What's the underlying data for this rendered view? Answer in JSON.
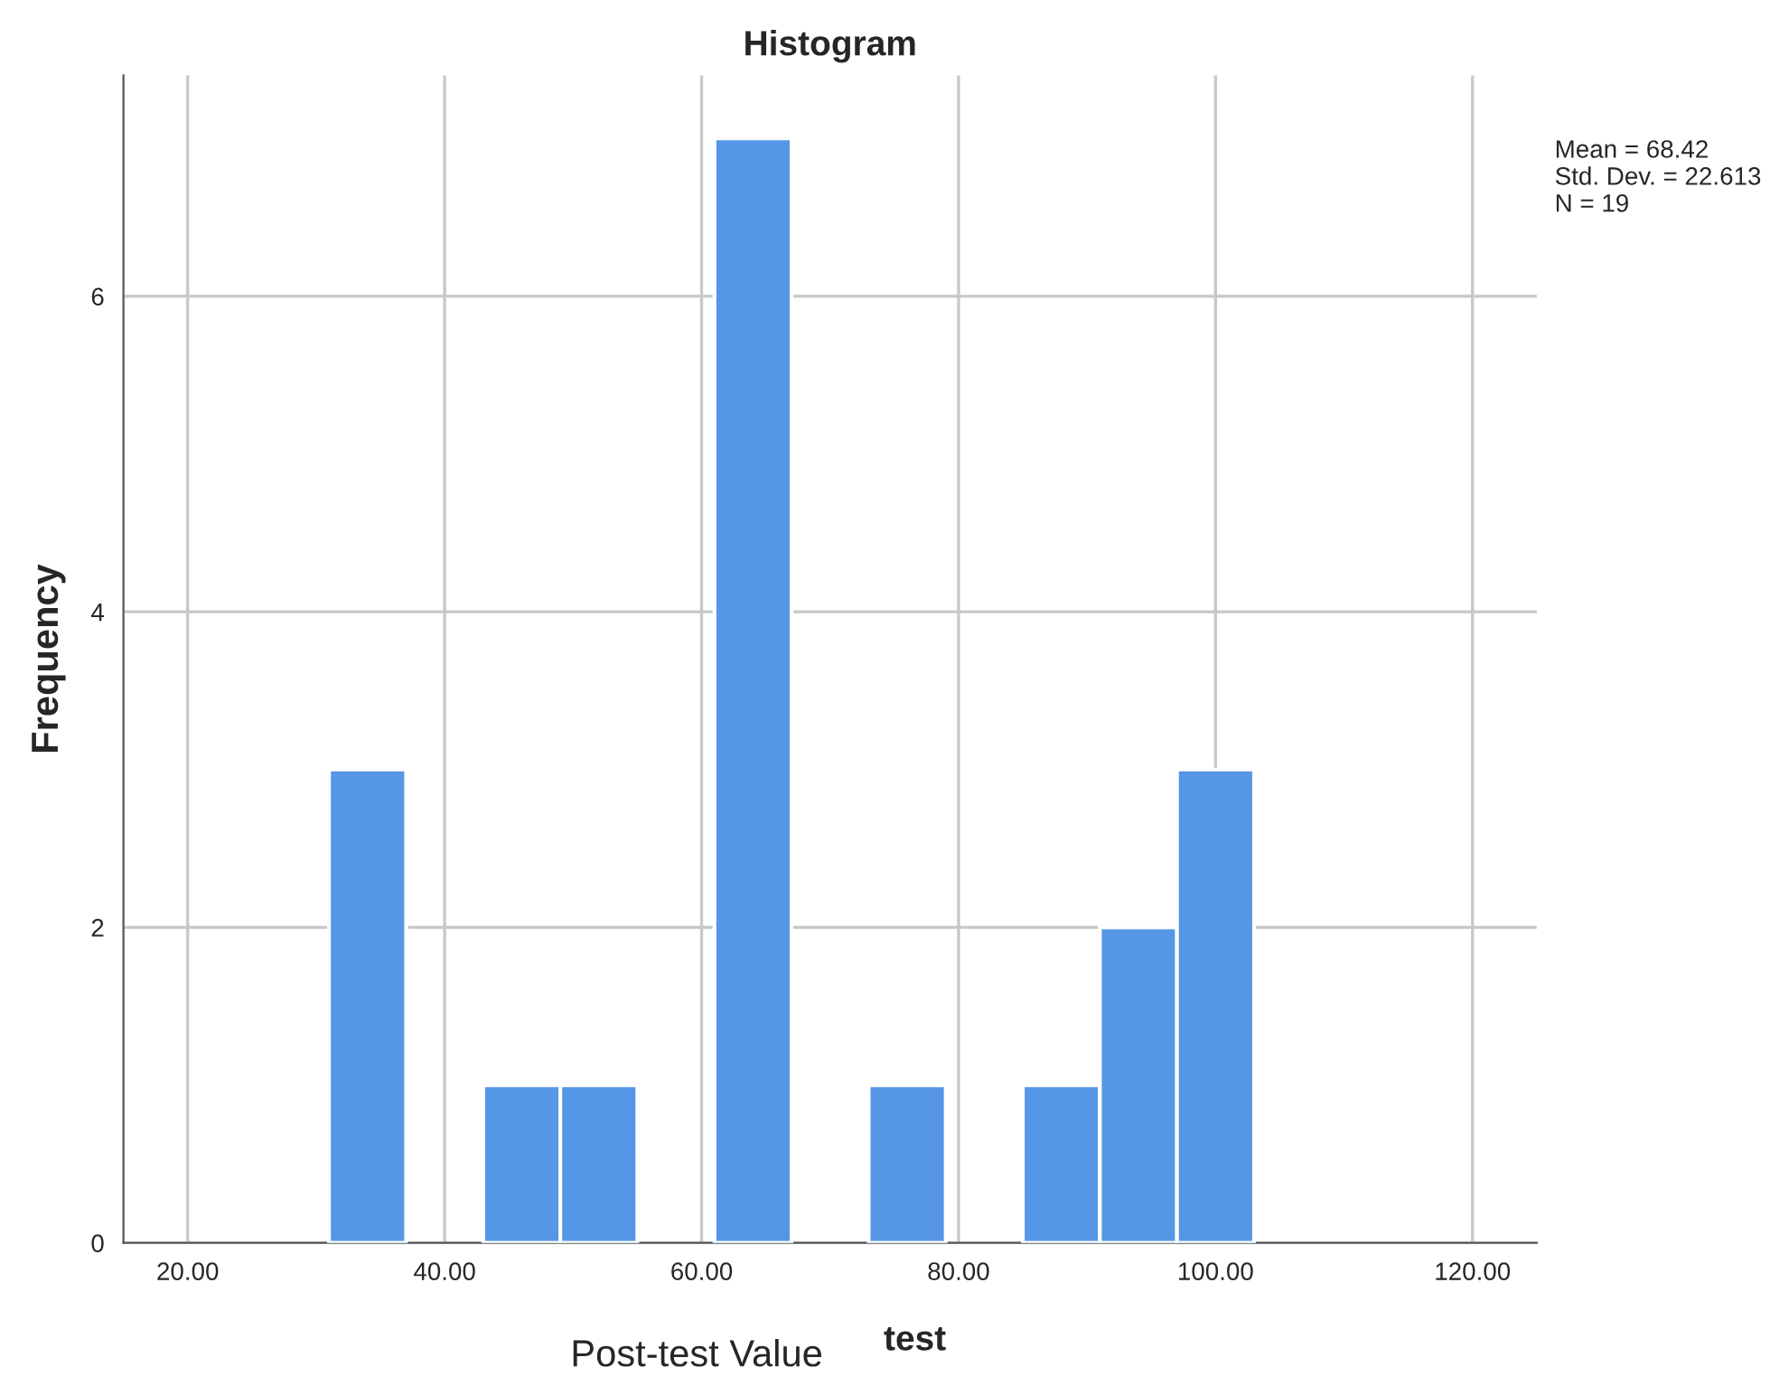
{
  "chart_data": {
    "type": "histogram",
    "title": "Histogram",
    "xlabel": "test",
    "ylabel": "Frequency",
    "bins": [
      31,
      37,
      43,
      49,
      55,
      61,
      67,
      73,
      79,
      85,
      91,
      97,
      103
    ],
    "values": [
      3,
      0,
      1,
      1,
      0,
      7,
      0,
      1,
      0,
      1,
      2,
      3
    ],
    "color": "#5596e6",
    "xlim": [
      15,
      125
    ],
    "ylim": [
      0,
      7.4
    ],
    "xticks": [
      {
        "value": 20,
        "label": "20.00"
      },
      {
        "value": 40,
        "label": "40.00"
      },
      {
        "value": 60,
        "label": "60.00"
      },
      {
        "value": 80,
        "label": "80.00"
      },
      {
        "value": 100,
        "label": "100.00"
      },
      {
        "value": 120,
        "label": "120.00"
      }
    ],
    "yticks": [
      0,
      2,
      4,
      6
    ],
    "grid": true,
    "legend": false,
    "annotations": [
      "Mean = 68.42\nStd. Dev. = 22.613\nN = 19",
      "Post-test Value"
    ]
  }
}
